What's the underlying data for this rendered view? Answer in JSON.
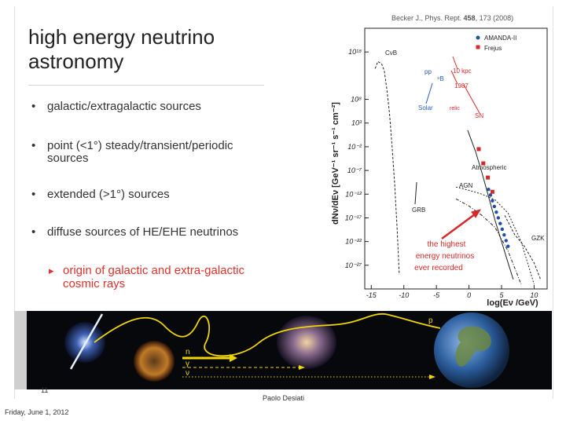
{
  "slide": {
    "title_line1": "high energy neutrino",
    "title_line2": "astronomy",
    "bullets": [
      "galactic/extragalactic sources",
      "point (<1°) steady/transient/periodic sources",
      "extended (>1°) sources",
      "diffuse sources of HE/EHE neutrinos"
    ],
    "sub_bullet": "origin of galactic and extra-galactic cosmic rays",
    "page_number": "11",
    "author": "Paolo Desiati",
    "date": "Friday, June 1, 2012"
  },
  "chart_data": {
    "type": "line",
    "citation_prefix": "Becker J., Phys. Rept. ",
    "citation_volume": "458",
    "citation_suffix": ", 173 (2008)",
    "ylabel": "dNν/dEν [GeV⁻¹ sr⁻¹ s⁻¹ cm⁻²]",
    "xlabel": "log(Eν /GeV)",
    "x_ticks": [
      "-15",
      "-10",
      "-5",
      "0",
      "5",
      "10"
    ],
    "x_tick_values": [
      -15,
      -10,
      -5,
      0,
      5,
      10
    ],
    "y_ticks": [
      "10¹⁸",
      "10⁸",
      "10³",
      "10⁻²",
      "10⁻⁷",
      "10⁻¹²",
      "10⁻¹⁷",
      "10⁻²²",
      "10⁻²⁷"
    ],
    "y_tick_values": [
      18,
      8,
      3,
      -2,
      -7,
      -12,
      -17,
      -22,
      -27
    ],
    "xlim": [
      -16,
      12
    ],
    "ylim": [
      -32,
      23
    ],
    "legend": [
      {
        "name": "AMANDA-II",
        "color": "#1e4fa3"
      },
      {
        "name": "Frejus",
        "color": "#d62828"
      }
    ],
    "labels": {
      "cnb": "CνB",
      "pp": "pp",
      "b8": "⁸B",
      "solar": "Solar",
      "kpc": "10 kpc",
      "sn1987": "1987",
      "relic": "relic",
      "sn": "SN",
      "atmospheric": "Atmospheric",
      "agn": "AGN",
      "grb": "GRB",
      "gzk": "GZK",
      "arrow_line1": "the highest",
      "arrow_line2": "energy neutrinos",
      "arrow_line3": "ever recorded"
    },
    "series": [
      {
        "id": "cnb",
        "x": [
          -14.4,
          -14.0,
          -13.4,
          -13.0,
          -12.6,
          -12.2,
          -11.8,
          -11.4,
          -11.0,
          -10.7
        ],
        "y": [
          14.5,
          16.0,
          15.5,
          14.0,
          10.0,
          5.0,
          -2.0,
          -10.0,
          -20.0,
          -29.0
        ]
      },
      {
        "id": "atmospheric",
        "x": [
          -0.2,
          1.0,
          2.0,
          3.0,
          4.0,
          5.0,
          6.0,
          6.8
        ],
        "y": [
          1.5,
          -3.0,
          -7.5,
          -12.5,
          -17.5,
          -22.0,
          -26.5,
          -30.0
        ]
      },
      {
        "id": "agn",
        "x": [
          -2.0,
          0.0,
          2.0,
          4.0,
          6.0,
          8.0,
          10.0
        ],
        "y": [
          -10.5,
          -11.2,
          -12.0,
          -13.2,
          -16.0,
          -22.0,
          -31.0
        ]
      },
      {
        "id": "grb",
        "x": [
          -2.0,
          0.0,
          2.0,
          4.0,
          6.0,
          8.0
        ],
        "y": [
          -13.0,
          -14.5,
          -16.5,
          -19.0,
          -24.0,
          -31.0
        ]
      },
      {
        "id": "gzk",
        "x": [
          5.5,
          7.0,
          8.5,
          10.0,
          11.0
        ],
        "y": [
          -16.5,
          -20.5,
          -23.0,
          -26.5,
          -30.0
        ]
      }
    ],
    "frejus_points": {
      "x": [
        1.5,
        2.2,
        2.9,
        3.6
      ],
      "y": [
        -2.5,
        -5.5,
        -8.5,
        -11.5
      ]
    },
    "amanda_points": {
      "x": [
        3.0,
        3.3,
        3.6,
        3.9,
        4.2,
        4.5,
        4.8,
        5.1,
        5.4,
        5.7,
        6.0
      ],
      "y": [
        -11.0,
        -12.2,
        -13.4,
        -14.6,
        -15.8,
        -17.0,
        -18.2,
        -19.4,
        -20.6,
        -21.8,
        -23.0
      ]
    }
  },
  "colors": {
    "accent_red": "#e0312b",
    "annotation_red": "#d62828",
    "amanda_blue": "#1e4fa3",
    "solar_blue": "#2b5fb4"
  },
  "strip_labels": {
    "p": "p",
    "n": "n",
    "gamma": "γ",
    "nu": "ν"
  }
}
